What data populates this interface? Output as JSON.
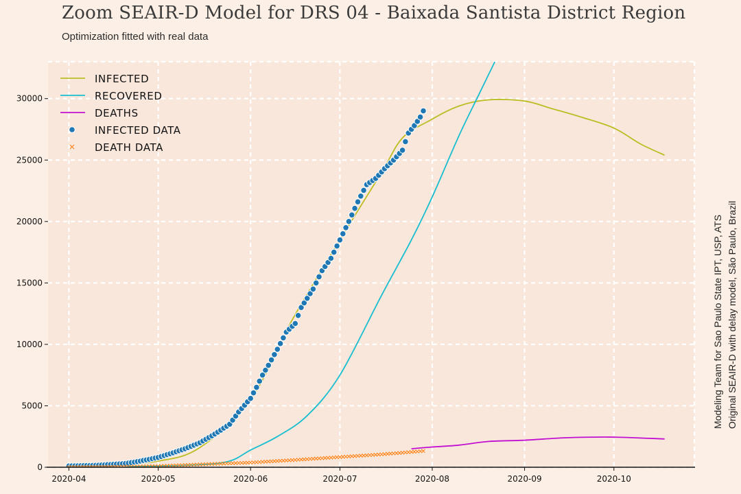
{
  "chart_data": {
    "type": "line",
    "title": "Zoom SEAIR-D Model for DRS 04 - Baixada Santista District Region",
    "subtitle": "Optimization fitted with real data",
    "xlabel": "",
    "ylabel": "",
    "x_ticks": [
      "2020-04",
      "2020-05",
      "2020-06",
      "2020-07",
      "2020-08",
      "2020-09",
      "2020-10"
    ],
    "x_range": [
      "2020-03-25",
      "2020-10-28"
    ],
    "y_ticks": [
      0,
      5000,
      10000,
      15000,
      20000,
      25000,
      30000
    ],
    "ylim": [
      0,
      33000
    ],
    "grid": true,
    "legend_position": "top-left",
    "legend": [
      "INFECTED",
      "RECOVERED",
      "DEATHS",
      "INFECTED DATA",
      "DEATH DATA"
    ],
    "colors": {
      "infected": "#bcbd22",
      "recovered": "#17becf",
      "deaths": "#c20fd1",
      "infected_data": "#1f77b4",
      "death_data": "#ff7f0e",
      "plot_bg": "#f9e7dc",
      "page_bg": "#fcf0e6",
      "grid": "#ffffff"
    },
    "series": [
      {
        "name": "INFECTED",
        "style": "line",
        "x": [
          "2020-04-01",
          "2020-04-15",
          "2020-05-01",
          "2020-05-15",
          "2020-06-01",
          "2020-06-15",
          "2020-07-01",
          "2020-07-15",
          "2020-07-22",
          "2020-07-31",
          "2020-08-10",
          "2020-08-20",
          "2020-09-01",
          "2020-09-10",
          "2020-09-20",
          "2020-10-01",
          "2020-10-10",
          "2020-10-18"
        ],
        "values": [
          100,
          200,
          500,
          1600,
          5500,
          12000,
          18500,
          24000,
          26800,
          28200,
          29400,
          29900,
          29800,
          29200,
          28500,
          27600,
          26300,
          25400
        ]
      },
      {
        "name": "RECOVERED",
        "style": "line",
        "x": [
          "2020-04-01",
          "2020-05-01",
          "2020-05-15",
          "2020-05-25",
          "2020-06-01",
          "2020-06-10",
          "2020-06-20",
          "2020-07-01",
          "2020-07-15",
          "2020-07-25",
          "2020-08-01",
          "2020-08-10",
          "2020-08-17",
          "2020-08-22"
        ],
        "values": [
          0,
          100,
          200,
          500,
          1400,
          2500,
          4200,
          7500,
          14000,
          18500,
          22000,
          27000,
          30500,
          33000
        ]
      },
      {
        "name": "DEATHS",
        "style": "line",
        "x": [
          "2020-07-25",
          "2020-08-01",
          "2020-08-10",
          "2020-08-20",
          "2020-09-01",
          "2020-09-15",
          "2020-10-01",
          "2020-10-18"
        ],
        "values": [
          1500,
          1650,
          1800,
          2100,
          2200,
          2400,
          2450,
          2300
        ]
      },
      {
        "name": "INFECTED DATA",
        "style": "scatter",
        "x": [
          "2020-04-01",
          "2020-04-10",
          "2020-04-20",
          "2020-04-25",
          "2020-05-01",
          "2020-05-05",
          "2020-05-10",
          "2020-05-15",
          "2020-05-20",
          "2020-05-25",
          "2020-05-28",
          "2020-06-01",
          "2020-06-03",
          "2020-06-05",
          "2020-06-07",
          "2020-06-10",
          "2020-06-13",
          "2020-06-16",
          "2020-06-18",
          "2020-06-22",
          "2020-06-25",
          "2020-06-28",
          "2020-07-01",
          "2020-07-04",
          "2020-07-07",
          "2020-07-10",
          "2020-07-13",
          "2020-07-16",
          "2020-07-19",
          "2020-07-22",
          "2020-07-24",
          "2020-07-26",
          "2020-07-28",
          "2020-07-29"
        ],
        "values": [
          100,
          150,
          300,
          500,
          800,
          1100,
          1500,
          2000,
          2700,
          3500,
          4500,
          5600,
          6500,
          7500,
          8300,
          9600,
          11000,
          11700,
          13000,
          14500,
          16000,
          17000,
          18500,
          20000,
          21600,
          23000,
          23500,
          24300,
          25000,
          25800,
          27200,
          27800,
          28500,
          29000
        ]
      },
      {
        "name": "DEATH DATA",
        "style": "marker-x",
        "x": [
          "2020-04-01",
          "2020-04-15",
          "2020-05-01",
          "2020-05-15",
          "2020-06-01",
          "2020-06-15",
          "2020-07-01",
          "2020-07-15",
          "2020-07-29"
        ],
        "values": [
          5,
          30,
          90,
          230,
          380,
          580,
          830,
          1050,
          1320
        ]
      }
    ]
  },
  "credits": {
    "line1": "Modeling Team for Sao Paulo State IPT, USP, ATS",
    "line2": "Original SEAIR-D with delay model, São Paulo, Brazil"
  }
}
